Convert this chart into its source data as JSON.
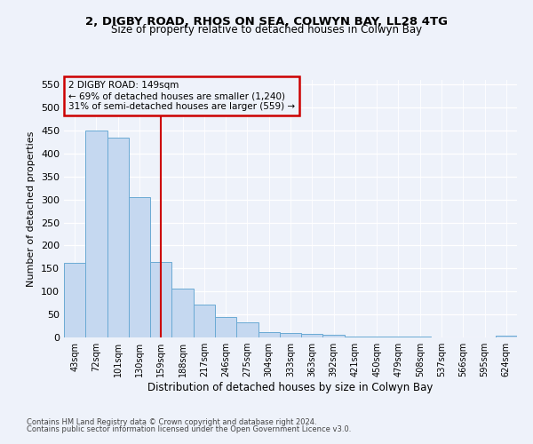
{
  "title1": "2, DIGBY ROAD, RHOS ON SEA, COLWYN BAY, LL28 4TG",
  "title2": "Size of property relative to detached houses in Colwyn Bay",
  "xlabel": "Distribution of detached houses by size in Colwyn Bay",
  "ylabel": "Number of detached properties",
  "bar_labels": [
    "43sqm",
    "72sqm",
    "101sqm",
    "130sqm",
    "159sqm",
    "188sqm",
    "217sqm",
    "246sqm",
    "275sqm",
    "304sqm",
    "333sqm",
    "363sqm",
    "392sqm",
    "421sqm",
    "450sqm",
    "479sqm",
    "508sqm",
    "537sqm",
    "566sqm",
    "595sqm",
    "624sqm"
  ],
  "bar_values": [
    163,
    450,
    435,
    306,
    165,
    106,
    72,
    44,
    33,
    11,
    10,
    8,
    5,
    2,
    1,
    1,
    1,
    0,
    0,
    0,
    4
  ],
  "bar_color": "#c5d8f0",
  "bar_edge_color": "#6aaad4",
  "vline_x": 4,
  "vline_color": "#cc0000",
  "annotation_title": "2 DIGBY ROAD: 149sqm",
  "annotation_line1": "← 69% of detached houses are smaller (1,240)",
  "annotation_line2": "31% of semi-detached houses are larger (559) →",
  "annotation_box_color": "#cc0000",
  "ylim": [
    0,
    560
  ],
  "yticks": [
    0,
    50,
    100,
    150,
    200,
    250,
    300,
    350,
    400,
    450,
    500,
    550
  ],
  "footer1": "Contains HM Land Registry data © Crown copyright and database right 2024.",
  "footer2": "Contains public sector information licensed under the Open Government Licence v3.0.",
  "bg_color": "#eef2fa"
}
